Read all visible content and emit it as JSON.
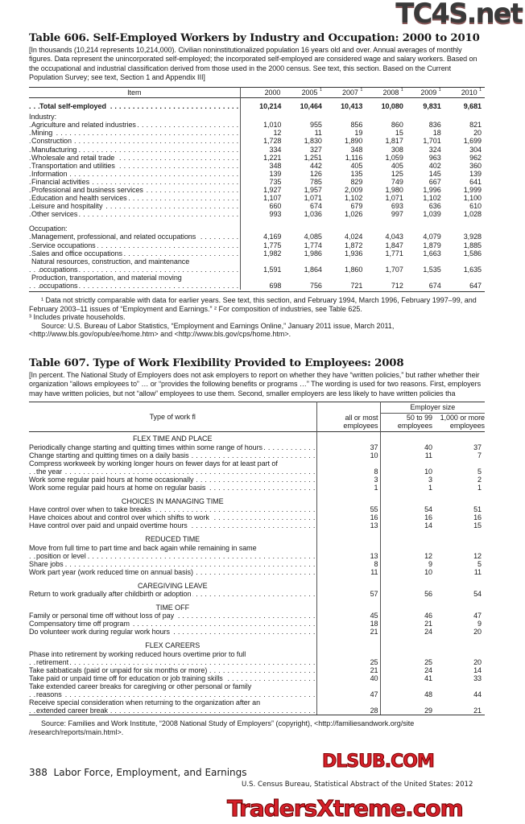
{
  "watermarks": {
    "top": "TC4S.net",
    "middle": "DLSUB.COM",
    "bottom": "TradersXtreme.com"
  },
  "t606": {
    "title": "Table 606. Self-Employed Workers by Industry and Occupation: 2000 to 2010",
    "intro": "[In thousands (10,214 represents 10,214,000). Civilian noninstitutionalized population 16 years old and over. Annual averages of monthly figures. Data represent the unincorporated self-employed; the incorporated self-employed are considered wage and salary workers. Based on the occupational and industrial classification derived from those used in the 2000 census. See text, this section. Based on the Current Population Survey;  see text, Section 1 and Appendix III]",
    "item_header": "Item",
    "years": [
      {
        "y": "2000",
        "n": ""
      },
      {
        "y": "2005",
        "n": "1"
      },
      {
        "y": "2007",
        "n": "1"
      },
      {
        "y": "2008",
        "n": "1"
      },
      {
        "y": "2009",
        "n": "1"
      },
      {
        "y": "2010",
        "n": "1"
      }
    ],
    "rows": [
      {
        "k": "total",
        "label": "Total self-employed",
        "v": [
          "10,214",
          "10,464",
          "10,413",
          "10,080",
          "9,831",
          "9,681"
        ]
      },
      {
        "k": "head",
        "label": "Industry:"
      },
      {
        "label": "Agriculture and related industries",
        "v": [
          "1,010",
          "955",
          "856",
          "860",
          "836",
          "821"
        ]
      },
      {
        "label": "Mining",
        "v": [
          "12",
          "11",
          "19",
          "15",
          "18",
          "20"
        ]
      },
      {
        "label": "Construction",
        "v": [
          "1,728",
          "1,830",
          "1,890",
          "1,817",
          "1,701",
          "1,699"
        ]
      },
      {
        "label": "Manufacturing",
        "v": [
          "334",
          "327",
          "348",
          "308",
          "324",
          "304"
        ]
      },
      {
        "label": "Wholesale and retail trade",
        "v": [
          "1,221",
          "1,251",
          "1,116",
          "1,059",
          "963",
          "962"
        ]
      },
      {
        "label": "Transportation and utilities",
        "v": [
          "348",
          "442",
          "405",
          "405",
          "402",
          "360"
        ]
      },
      {
        "label": "Information",
        "v": [
          "139",
          "126",
          "135",
          "125",
          "145",
          "139"
        ]
      },
      {
        "label": "Financial activities",
        "n": "2",
        "v": [
          "735",
          "785",
          "829",
          "749",
          "667",
          "641"
        ]
      },
      {
        "label": "Professional and business services",
        "n": "2",
        "v": [
          "1,927",
          "1,957",
          "2,009",
          "1,980",
          "1,996",
          "1,999"
        ]
      },
      {
        "label": "Education and health services",
        "n": "2",
        "v": [
          "1,107",
          "1,071",
          "1,102",
          "1,071",
          "1,102",
          "1,100"
        ]
      },
      {
        "label": "Leisure and hospitality",
        "n": "2",
        "v": [
          "660",
          "674",
          "679",
          "693",
          "636",
          "610"
        ]
      },
      {
        "label": "Other services",
        "n": "3",
        "v": [
          "993",
          "1,036",
          "1,026",
          "997",
          "1,039",
          "1,028"
        ]
      },
      {
        "k": "head",
        "label": "Occupation:",
        "gap": true
      },
      {
        "label": "Management, professional, and related occupations",
        "v": [
          "4,169",
          "4,085",
          "4,024",
          "4,043",
          "4,079",
          "3,928"
        ]
      },
      {
        "label": "Service occupations",
        "v": [
          "1,775",
          "1,774",
          "1,872",
          "1,847",
          "1,879",
          "1,885"
        ]
      },
      {
        "label": "Sales and office occupations",
        "v": [
          "1,982",
          "1,986",
          "1,936",
          "1,771",
          "1,663",
          "1,586"
        ]
      },
      {
        "label": "Natural resources, construction, and maintenance",
        "cont": "occupations",
        "v": [
          "1,591",
          "1,864",
          "1,860",
          "1,707",
          "1,535",
          "1,635"
        ]
      },
      {
        "label": "Production, transportation, and  material moving",
        "cont": "occupations",
        "v": [
          "698",
          "756",
          "721",
          "712",
          "674",
          "647"
        ]
      }
    ],
    "footnote1": "¹ Data not strictly comparable with data for earlier years. See text, this section, and February 1994, March 1996, February 1997–99, and February 2003–11 issues of “Employment and Earnings.” ² For composition of industries, see Table 625.",
    "footnote2": "³ Includes private households.",
    "source": "Source: U.S. Bureau of Labor Statistics, “Employment and Earnings Online,”  January 2011 issue, March 2011, <http://www.bls.gov/opub/ee/home.htm> and  <http://www.bls.gov/cps/home.htm>."
  },
  "t607": {
    "title": "Table 607. Type of Work Flexibility Provided to Employees: 2008",
    "intro": "[In percent. The National Study of Employers does not ask employers to report on whether they have “written policies,” but rather whether their organization “allows employees to” … or “provides the following benefits or programs …” The wording is used for two reasons. First, employers may have written policies, but not “allow” employees to use them. Second, smaller employers are less likely to have written policies tha",
    "col_item": "Type of work fl",
    "col_all": [
      "all or most",
      "employees"
    ],
    "employer_size": "Employer size",
    "col_small": [
      "50 to 99",
      "employees"
    ],
    "col_large": [
      "1,000 or more",
      "employees"
    ],
    "sections": [
      {
        "h": "FLEX TIME AND PLACE",
        "rows": [
          {
            "label": "Periodically change starting and quitting times within some range of hours",
            "v": [
              "37",
              "40",
              "37"
            ]
          },
          {
            "label": "Change starting and quitting times on a daily basis",
            "v": [
              "10",
              "11",
              "7"
            ]
          },
          {
            "label": "Compress workweek by working longer hours on fewer days for at least part of",
            "cont": "the year",
            "v": [
              "8",
              "10",
              "5"
            ]
          },
          {
            "label": "Work some regular paid hours at home occasionally",
            "v": [
              "3",
              "3",
              "2"
            ]
          },
          {
            "label": "Work some regular paid hours at home on regular basis",
            "v": [
              "1",
              "1",
              "1"
            ]
          }
        ]
      },
      {
        "h": "CHOICES IN MANAGING TIME",
        "rows": [
          {
            "label": "Have control over when to take breaks",
            "v": [
              "55",
              "54",
              "51"
            ]
          },
          {
            "label": "Have choices about and control over which shifts to work",
            "v": [
              "16",
              "16",
              "16"
            ]
          },
          {
            "label": "Have control over paid and unpaid overtime hours",
            "v": [
              "13",
              "14",
              "15"
            ]
          }
        ]
      },
      {
        "h": "REDUCED TIME",
        "rows": [
          {
            "label": "Move from full time to part time and back again while remaining in same",
            "cont": "position or level",
            "v": [
              "13",
              "12",
              "12"
            ]
          },
          {
            "label": "Share jobs",
            "v": [
              "8",
              "9",
              "5"
            ]
          },
          {
            "label": "Work part year (work reduced time on annual basis)",
            "v": [
              "11",
              "10",
              "11"
            ]
          }
        ]
      },
      {
        "h": "CAREGIVING LEAVE",
        "rows": [
          {
            "label": "Return to work gradually after childbirth or adoption",
            "v": [
              "57",
              "56",
              "54"
            ]
          }
        ]
      },
      {
        "h": "TIME OFF",
        "rows": [
          {
            "label": "Family or personal time off without loss of pay",
            "v": [
              "45",
              "46",
              "47"
            ]
          },
          {
            "label": "Compensatory time off program",
            "v": [
              "18",
              "21",
              "9"
            ]
          },
          {
            "label": "Do volunteer work during regular work hours",
            "v": [
              "21",
              "24",
              "20"
            ]
          }
        ]
      },
      {
        "h": "FLEX CAREERS",
        "rows": [
          {
            "label": "Phase into retirement by working reduced hours overtime prior to full",
            "cont": "retirement",
            "v": [
              "25",
              "25",
              "20"
            ]
          },
          {
            "label": "Take sabbaticals (paid or unpaid for six months or more)",
            "v": [
              "21",
              "24",
              "14"
            ]
          },
          {
            "label": "Take paid or unpaid time off for education or job training skills",
            "v": [
              "40",
              "41",
              "33"
            ]
          },
          {
            "label": "Take extended career breaks for caregiving or other  personal or family",
            "cont": "reasons",
            "v": [
              "47",
              "48",
              "44"
            ]
          },
          {
            "label": "Receive special consideration when returning to the  organization after an",
            "cont": "extended career break",
            "v": [
              "28",
              "29",
              "21"
            ]
          }
        ]
      }
    ],
    "source": "Source: Families and Work Institute, “2008 National Study of Employers” (copyright), <http://familiesandwork.org/site /research/reports/main.html>."
  },
  "footer": {
    "page": "388",
    "chapter": "Labor Force, Employment, and Earnings",
    "publication": "U.S. Census Bureau, Statistical Abstract of the United States: 2012"
  }
}
